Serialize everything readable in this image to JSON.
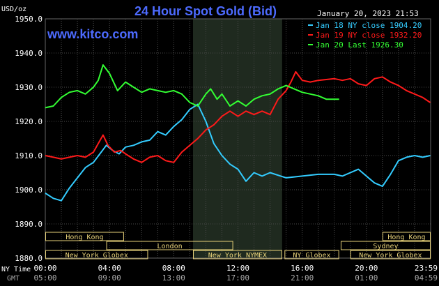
{
  "chart_data": {
    "type": "line",
    "title": "24 Hour Spot Gold (Bid)",
    "watermark": "www.kitco.com",
    "timestamp": "January 20, 2023 21:53",
    "ylabel": "USD/oz",
    "ylim": [
      1880,
      1950
    ],
    "yticks": [
      "1950.0",
      "1940.0",
      "1930.0",
      "1920.0",
      "1910.0",
      "1900.0",
      "1890.0",
      "1880.0"
    ],
    "ytick_values": [
      1950,
      1940,
      1930,
      1920,
      1910,
      1900,
      1890,
      1880
    ],
    "xlim": [
      0,
      24
    ],
    "xtick_hours": [
      0,
      4,
      8,
      12,
      16,
      20,
      24
    ],
    "xaxis_row1_label": "NY Time",
    "xaxis_row2_label": "GMT",
    "xticks_ny": [
      "00:00",
      "04:00",
      "08:00",
      "12:00",
      "16:00",
      "20:00",
      "23:59"
    ],
    "xticks_gmt": [
      "05:00",
      "09:00",
      "13:00",
      "17:00",
      "21:00",
      "01:00",
      "04:59"
    ],
    "grid": true,
    "legend_position": "top-right",
    "shaded_session": {
      "start": 9.2,
      "end": 14.75
    },
    "sessions": [
      {
        "label": "Hong Kong",
        "start": 0,
        "end": 4.9,
        "row": 0
      },
      {
        "label": "Hong Kong",
        "start": 21.0,
        "end": 24,
        "row": 0
      },
      {
        "label": "London",
        "start": 3.8,
        "end": 11.7,
        "row": 1
      },
      {
        "label": "Sydney",
        "start": 18.4,
        "end": 24,
        "row": 1
      },
      {
        "label": "New York Globex",
        "start": 0,
        "end": 6.4,
        "row": 2
      },
      {
        "label": "New York NYMEX",
        "start": 9.2,
        "end": 14.75,
        "row": 2
      },
      {
        "label": "NY Globex",
        "start": 14.9,
        "end": 18.3,
        "row": 2
      },
      {
        "label": "New York Globex",
        "start": 19.0,
        "end": 24,
        "row": 2
      }
    ],
    "series": [
      {
        "name": "Jan 18 NY close 1904.20",
        "color": "#33ccff",
        "x": [
          0,
          0.5,
          1.0,
          1.5,
          2.0,
          2.5,
          3.0,
          3.4,
          3.8,
          4.2,
          4.6,
          5.0,
          5.5,
          6.0,
          6.5,
          7.0,
          7.5,
          8.0,
          8.5,
          9.0,
          9.5,
          10.0,
          10.5,
          11.0,
          11.5,
          12.0,
          12.5,
          13.0,
          13.5,
          14.0,
          15.0,
          16.0,
          17.0,
          18.0,
          18.5,
          19.0,
          19.5,
          20.0,
          20.5,
          21.0,
          21.5,
          22.0,
          22.5,
          23.0,
          23.5,
          23.98
        ],
        "y": [
          1899.0,
          1897.5,
          1896.8,
          1900.5,
          1903.5,
          1906.5,
          1908.0,
          1910.5,
          1913.0,
          1911.5,
          1910.5,
          1912.5,
          1913.0,
          1914.0,
          1914.5,
          1917.0,
          1916.0,
          1918.5,
          1920.5,
          1923.5,
          1925.0,
          1920.0,
          1913.5,
          1910.0,
          1907.5,
          1906.0,
          1902.5,
          1905.0,
          1904.0,
          1905.0,
          1903.5,
          1904.0,
          1904.5,
          1904.5,
          1904.0,
          1905.0,
          1906.0,
          1904.0,
          1902.0,
          1901.0,
          1904.5,
          1908.5,
          1909.5,
          1910.0,
          1909.5,
          1910.0
        ]
      },
      {
        "name": "Jan 19 NY close 1932.20",
        "color": "#ff1a1a",
        "x": [
          0,
          0.5,
          1.0,
          1.5,
          2.0,
          2.5,
          3.0,
          3.3,
          3.6,
          3.9,
          4.3,
          4.7,
          5.0,
          5.5,
          6.0,
          6.5,
          7.0,
          7.5,
          8.0,
          8.5,
          9.0,
          9.5,
          10.0,
          10.5,
          11.0,
          11.5,
          12.0,
          12.5,
          13.0,
          13.5,
          14.0,
          14.5,
          15.0,
          15.3,
          15.6,
          16.0,
          16.5,
          17.0,
          18.0,
          18.5,
          19.0,
          19.5,
          20.0,
          20.5,
          21.0,
          21.5,
          22.0,
          22.5,
          23.0,
          23.5,
          23.98
        ],
        "y": [
          1910.0,
          1909.5,
          1909.0,
          1909.5,
          1910.0,
          1909.5,
          1911.0,
          1913.5,
          1916.0,
          1913.0,
          1911.0,
          1911.5,
          1910.5,
          1909.0,
          1908.0,
          1909.5,
          1910.0,
          1908.5,
          1908.0,
          1911.0,
          1913.0,
          1915.0,
          1917.5,
          1919.0,
          1921.5,
          1923.0,
          1921.5,
          1923.0,
          1922.0,
          1923.0,
          1922.0,
          1926.5,
          1929.0,
          1931.5,
          1934.5,
          1932.0,
          1931.5,
          1932.0,
          1932.5,
          1932.0,
          1932.5,
          1931.0,
          1930.5,
          1932.5,
          1933.0,
          1931.5,
          1930.5,
          1929.0,
          1928.0,
          1927.0,
          1925.5
        ]
      },
      {
        "name": "Jan 20 Last 1926.30",
        "color": "#33ff33",
        "x": [
          0,
          0.5,
          1.0,
          1.5,
          2.0,
          2.5,
          3.0,
          3.3,
          3.6,
          4.0,
          4.5,
          5.0,
          5.5,
          6.0,
          6.5,
          7.0,
          7.5,
          8.0,
          8.5,
          9.0,
          9.5,
          10.0,
          10.3,
          10.7,
          11.0,
          11.5,
          12.0,
          12.5,
          13.0,
          13.5,
          14.0,
          14.5,
          15.0,
          15.5,
          16.0,
          16.5,
          17.0,
          17.5,
          18.0,
          18.3
        ],
        "y": [
          1924.0,
          1924.5,
          1927.0,
          1928.5,
          1929.0,
          1928.0,
          1930.0,
          1932.0,
          1936.5,
          1934.0,
          1929.0,
          1931.5,
          1930.0,
          1928.5,
          1929.5,
          1929.0,
          1928.5,
          1929.0,
          1928.0,
          1925.5,
          1924.5,
          1928.0,
          1929.5,
          1926.5,
          1928.0,
          1924.5,
          1926.0,
          1924.5,
          1926.5,
          1927.5,
          1928.0,
          1929.5,
          1930.5,
          1929.5,
          1928.5,
          1928.0,
          1927.5,
          1926.5,
          1926.5,
          1926.5
        ]
      }
    ]
  }
}
